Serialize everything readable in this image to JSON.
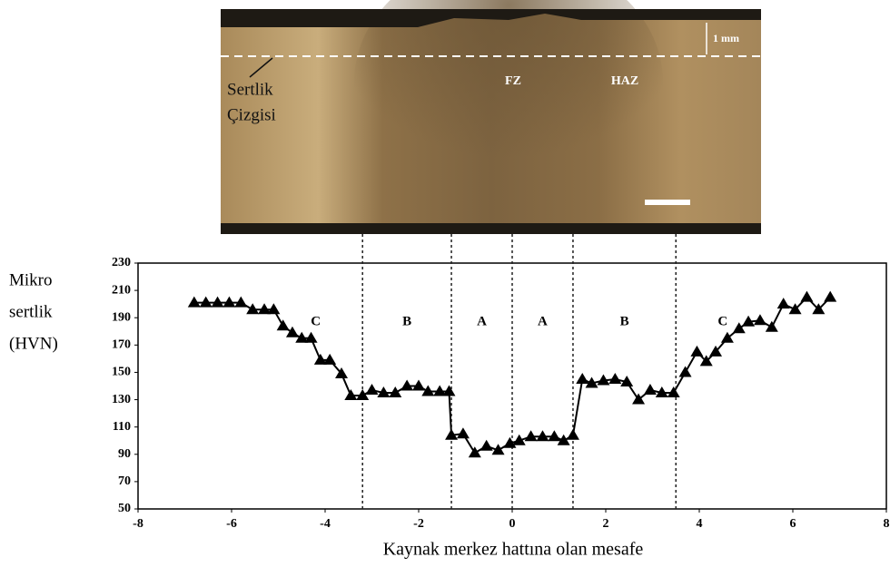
{
  "image": {
    "marker_label": [
      "Sertlik",
      "Çizgisi"
    ],
    "zone_labels": [
      "FZ",
      "HAZ"
    ],
    "scale_label": "1 mm"
  },
  "chart_data": {
    "type": "line",
    "y_label": [
      "Mikro",
      "sertlik",
      "(HVN)"
    ],
    "x_label": "Kaynak merkez hattına olan mesafe",
    "xlim": [
      -8,
      8
    ],
    "xticks": [
      -8,
      -6,
      -4,
      -2,
      0,
      2,
      4,
      6,
      8
    ],
    "ylim": [
      50,
      230
    ],
    "yticks": [
      50,
      70,
      90,
      110,
      130,
      150,
      170,
      190,
      210,
      230
    ],
    "color": "#000000",
    "boundaries": [
      -3.2,
      -1.3,
      0,
      1.3,
      3.5
    ],
    "region_labels": [
      "C",
      "B",
      "A",
      "A",
      "B",
      "C"
    ],
    "x": [
      -6.8,
      -6.55,
      -6.3,
      -6.05,
      -5.8,
      -5.55,
      -5.3,
      -5.1,
      -4.9,
      -4.7,
      -4.5,
      -4.3,
      -4.1,
      -3.9,
      -3.65,
      -3.45,
      -3.2,
      -3.0,
      -2.75,
      -2.5,
      -2.25,
      -2.0,
      -1.8,
      -1.55,
      -1.35,
      -1.3,
      -1.05,
      -0.8,
      -0.55,
      -0.3,
      -0.05,
      0.15,
      0.4,
      0.65,
      0.9,
      1.1,
      1.3,
      1.5,
      1.7,
      1.95,
      2.2,
      2.45,
      2.7,
      2.95,
      3.2,
      3.45,
      3.7,
      3.95,
      4.15,
      4.35,
      4.6,
      4.85,
      5.05,
      5.3,
      5.55,
      5.8,
      6.05,
      6.3,
      6.55,
      6.8
    ],
    "values": [
      201,
      201,
      201,
      201,
      201,
      196,
      196,
      196,
      184,
      179,
      175,
      175,
      159,
      159,
      149,
      133,
      133,
      137,
      135,
      135,
      140,
      140,
      136,
      136,
      136,
      104,
      105,
      91,
      96,
      93,
      98,
      100,
      103,
      103,
      103,
      100,
      104,
      145,
      142,
      144,
      145,
      143,
      130,
      137,
      135,
      135,
      150,
      165,
      158,
      165,
      175,
      182,
      187,
      188,
      183,
      200,
      196,
      205,
      196,
      205
    ]
  }
}
